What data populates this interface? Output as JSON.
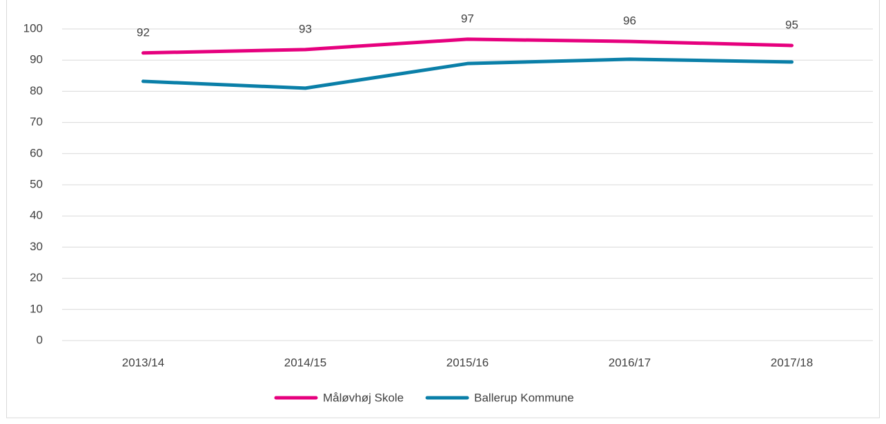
{
  "chart_data": {
    "type": "line",
    "categories": [
      "2013/14",
      "2014/15",
      "2015/16",
      "2016/17",
      "2017/18"
    ],
    "series": [
      {
        "name": "Måløvhøj Skole",
        "color": "#e6007e",
        "values": [
          92.3,
          93.4,
          96.7,
          96.0,
          94.7
        ],
        "value_labels": [
          "92",
          "93",
          "97",
          "96",
          "95"
        ]
      },
      {
        "name": "Ballerup Kommune",
        "color": "#0a7fa8",
        "values": [
          83.2,
          81.0,
          88.9,
          90.3,
          89.4
        ]
      }
    ],
    "ylim": [
      0,
      100
    ],
    "yticks": [
      0,
      10,
      20,
      30,
      40,
      50,
      60,
      70,
      80,
      90,
      100
    ],
    "grid": true,
    "legend": "bottom"
  }
}
